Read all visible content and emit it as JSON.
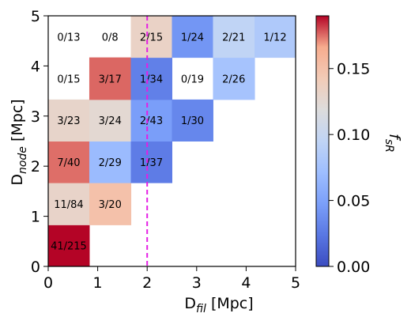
{
  "chart_data": {
    "type": "heatmap",
    "xlabel_main": "D",
    "xlabel_sub": "fil",
    "xlabel_unit": " [Mpc]",
    "ylabel_main": "D",
    "ylabel_sub": "node",
    "ylabel_unit": " [Mpc]",
    "colorbar_label_main": "f",
    "colorbar_label_sub": "sR",
    "xlim": [
      0,
      5
    ],
    "ylim": [
      0,
      5
    ],
    "xticks": [
      "0",
      "1",
      "2",
      "3",
      "4",
      "5"
    ],
    "yticks": [
      "0",
      "1",
      "2",
      "3",
      "4",
      "5"
    ],
    "colorbar": {
      "cmap": "coolwarm",
      "vmin": 0.0,
      "vmax": 0.19,
      "ticks": [
        "0.00",
        "0.05",
        "0.10",
        "0.15"
      ]
    },
    "vline": {
      "x": 2.0,
      "color": "#e41fe4",
      "style": "dashed"
    },
    "cells": [
      {
        "x": [
          0.0,
          0.83
        ],
        "y": [
          0.0,
          0.83
        ],
        "label": "41/215",
        "value": 0.19
      },
      {
        "x": [
          0.0,
          0.83
        ],
        "y": [
          0.83,
          1.67
        ],
        "label": "11/84",
        "value": 0.131
      },
      {
        "x": [
          0.83,
          1.67
        ],
        "y": [
          0.83,
          1.67
        ],
        "label": "3/20",
        "value": 0.15
      },
      {
        "x": [
          0.0,
          0.83
        ],
        "y": [
          1.67,
          2.5
        ],
        "label": "7/40",
        "value": 0.175
      },
      {
        "x": [
          0.83,
          1.67
        ],
        "y": [
          1.67,
          2.5
        ],
        "label": "2/29",
        "value": 0.069
      },
      {
        "x": [
          1.67,
          2.5
        ],
        "y": [
          1.67,
          2.5
        ],
        "label": "1/37",
        "value": 0.027
      },
      {
        "x": [
          0.0,
          0.83
        ],
        "y": [
          2.5,
          3.33
        ],
        "label": "3/23",
        "value": 0.13
      },
      {
        "x": [
          0.83,
          1.67
        ],
        "y": [
          2.5,
          3.33
        ],
        "label": "3/24",
        "value": 0.125
      },
      {
        "x": [
          1.67,
          2.5
        ],
        "y": [
          2.5,
          3.33
        ],
        "label": "2/43",
        "value": 0.047
      },
      {
        "x": [
          2.5,
          3.33
        ],
        "y": [
          2.5,
          3.33
        ],
        "label": "1/30",
        "value": 0.033
      },
      {
        "x": [
          0.0,
          0.83
        ],
        "y": [
          3.33,
          4.17
        ],
        "label": "0/15",
        "value": 0.0,
        "empty": true
      },
      {
        "x": [
          0.83,
          1.67
        ],
        "y": [
          3.33,
          4.17
        ],
        "label": "3/17",
        "value": 0.176
      },
      {
        "x": [
          1.67,
          2.5
        ],
        "y": [
          3.33,
          4.17
        ],
        "label": "1/34",
        "value": 0.029
      },
      {
        "x": [
          2.5,
          3.33
        ],
        "y": [
          3.33,
          4.17
        ],
        "label": "0/19",
        "value": 0.0,
        "empty": true
      },
      {
        "x": [
          3.33,
          4.17
        ],
        "y": [
          3.33,
          4.17
        ],
        "label": "2/26",
        "value": 0.077
      },
      {
        "x": [
          0.0,
          0.83
        ],
        "y": [
          4.17,
          5.0
        ],
        "label": "0/13",
        "value": 0.0,
        "empty": true
      },
      {
        "x": [
          0.83,
          1.67
        ],
        "y": [
          4.17,
          5.0
        ],
        "label": "0/8",
        "value": 0.0,
        "empty": true
      },
      {
        "x": [
          1.67,
          2.5
        ],
        "y": [
          4.17,
          5.0
        ],
        "label": "2/15",
        "value": 0.133
      },
      {
        "x": [
          2.5,
          3.33
        ],
        "y": [
          4.17,
          5.0
        ],
        "label": "1/24",
        "value": 0.042
      },
      {
        "x": [
          3.33,
          4.17
        ],
        "y": [
          4.17,
          5.0
        ],
        "label": "2/21",
        "value": 0.095
      },
      {
        "x": [
          4.17,
          5.0
        ],
        "y": [
          4.17,
          5.0
        ],
        "label": "1/12",
        "value": 0.083
      }
    ]
  }
}
